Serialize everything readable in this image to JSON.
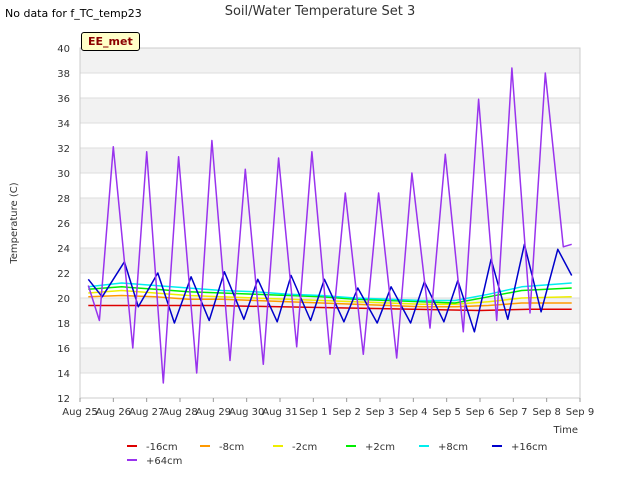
{
  "no_data_note": "No data for f_TC_temp23",
  "badge": "EE_met",
  "chart_data": {
    "type": "line",
    "title": "Soil/Water Temperature Set 3",
    "xlabel": "Time",
    "ylabel": "Temperature (C)",
    "xlim": [
      "2023-08-25",
      "2023-09-09"
    ],
    "ylim": [
      12,
      40
    ],
    "yticks": [
      12,
      14,
      16,
      18,
      20,
      22,
      24,
      26,
      28,
      30,
      32,
      34,
      36,
      38,
      40
    ],
    "xtick_labels": [
      "Aug 25",
      "Aug 26",
      "Aug 27",
      "Aug 28",
      "Aug 29",
      "Aug 30",
      "Aug 31",
      "Sep 1",
      "Sep 2",
      "Sep 3",
      "Sep 4",
      "Sep 5",
      "Sep 6",
      "Sep 7",
      "Sep 8",
      "Sep 9"
    ],
    "grid": true,
    "legend_position": "bottom",
    "series": [
      {
        "name": "-16cm",
        "color": "#dd0000",
        "x": [
          "2023-08-25 06:00",
          "2023-08-27 00:00",
          "2023-08-29 00:00",
          "2023-08-31 00:00",
          "2023-09-02 00:00",
          "2023-09-04 00:00",
          "2023-09-06 00:00",
          "2023-09-07 12:00",
          "2023-09-08 18:00"
        ],
        "y": [
          19.4,
          19.4,
          19.4,
          19.3,
          19.2,
          19.1,
          19.0,
          19.1,
          19.1
        ]
      },
      {
        "name": "-8cm",
        "color": "#ff9900",
        "x": [
          "2023-08-25 06:00",
          "2023-08-26 06:00",
          "2023-08-27 06:00",
          "2023-08-28 06:00",
          "2023-08-29 06:00",
          "2023-08-30 06:00",
          "2023-08-31 06:00",
          "2023-09-01 06:00",
          "2023-09-02 06:00",
          "2023-09-03 06:00",
          "2023-09-04 06:00",
          "2023-09-05 06:00",
          "2023-09-06 06:00",
          "2023-09-07 06:00",
          "2023-09-08 18:00"
        ],
        "y": [
          20.1,
          20.2,
          20.1,
          19.9,
          19.9,
          19.8,
          19.7,
          19.6,
          19.5,
          19.4,
          19.3,
          19.3,
          19.4,
          19.6,
          19.6
        ]
      },
      {
        "name": "-2cm",
        "color": "#eeee00",
        "x": [
          "2023-08-25 06:00",
          "2023-08-26 06:00",
          "2023-08-27 06:00",
          "2023-08-28 06:00",
          "2023-08-29 06:00",
          "2023-08-30 06:00",
          "2023-08-31 06:00",
          "2023-09-01 06:00",
          "2023-09-02 06:00",
          "2023-09-03 06:00",
          "2023-09-04 06:00",
          "2023-09-05 06:00",
          "2023-09-06 06:00",
          "2023-09-07 06:00",
          "2023-09-08 18:00"
        ],
        "y": [
          20.4,
          20.6,
          20.4,
          20.2,
          20.1,
          20.0,
          19.9,
          19.8,
          19.7,
          19.6,
          19.5,
          19.5,
          19.7,
          20.0,
          20.1
        ]
      },
      {
        "name": "+2cm",
        "color": "#00ee00",
        "x": [
          "2023-08-25 06:00",
          "2023-08-26 06:00",
          "2023-08-27 06:00",
          "2023-08-28 06:00",
          "2023-08-29 06:00",
          "2023-08-30 06:00",
          "2023-08-31 06:00",
          "2023-09-01 06:00",
          "2023-09-02 06:00",
          "2023-09-03 06:00",
          "2023-09-04 06:00",
          "2023-09-05 06:00",
          "2023-09-06 06:00",
          "2023-09-07 06:00",
          "2023-09-08 18:00"
        ],
        "y": [
          20.7,
          20.9,
          20.7,
          20.5,
          20.4,
          20.3,
          20.2,
          20.1,
          19.9,
          19.8,
          19.7,
          19.6,
          20.1,
          20.6,
          20.8
        ]
      },
      {
        "name": "+8cm",
        "color": "#00eeee",
        "x": [
          "2023-08-25 06:00",
          "2023-08-26 06:00",
          "2023-08-27 06:00",
          "2023-08-28 06:00",
          "2023-08-29 06:00",
          "2023-08-30 06:00",
          "2023-08-31 06:00",
          "2023-09-01 06:00",
          "2023-09-02 06:00",
          "2023-09-03 06:00",
          "2023-09-04 06:00",
          "2023-09-05 06:00",
          "2023-09-06 06:00",
          "2023-09-07 06:00",
          "2023-09-08 18:00"
        ],
        "y": [
          20.9,
          21.2,
          21.0,
          20.8,
          20.6,
          20.5,
          20.3,
          20.2,
          20.0,
          19.9,
          19.8,
          19.8,
          20.3,
          20.9,
          21.2
        ]
      },
      {
        "name": "+16cm",
        "color": "#0000cc",
        "x": [
          "2023-08-25 06:00",
          "2023-08-25 16:00",
          "2023-08-26 08:00",
          "2023-08-26 18:00",
          "2023-08-27 08:00",
          "2023-08-27 20:00",
          "2023-08-28 08:00",
          "2023-08-28 21:00",
          "2023-08-29 08:00",
          "2023-08-29 22:00",
          "2023-08-30 08:00",
          "2023-08-30 22:00",
          "2023-08-31 08:00",
          "2023-08-31 22:00",
          "2023-09-01 08:00",
          "2023-09-01 22:00",
          "2023-09-02 08:00",
          "2023-09-02 22:00",
          "2023-09-03 08:00",
          "2023-09-03 22:00",
          "2023-09-04 08:00",
          "2023-09-04 22:00",
          "2023-09-05 08:00",
          "2023-09-05 20:00",
          "2023-09-06 08:00",
          "2023-09-06 20:00",
          "2023-09-07 08:00",
          "2023-09-07 20:00",
          "2023-09-08 08:00",
          "2023-09-08 18:00"
        ],
        "y": [
          21.5,
          20.1,
          22.9,
          19.3,
          22.0,
          18.0,
          21.7,
          18.2,
          22.1,
          18.3,
          21.5,
          18.1,
          21.8,
          18.2,
          21.5,
          18.1,
          20.8,
          18.0,
          20.9,
          18.0,
          21.3,
          18.1,
          21.4,
          17.3,
          23.1,
          18.3,
          24.3,
          18.9,
          23.9,
          21.8
        ]
      },
      {
        "name": "+64cm",
        "color": "#9933ee",
        "x": [
          "2023-08-25 06:00",
          "2023-08-25 14:00",
          "2023-08-26 00:00",
          "2023-08-26 14:00",
          "2023-08-27 00:00",
          "2023-08-27 12:00",
          "2023-08-27 23:00",
          "2023-08-28 12:00",
          "2023-08-28 23:00",
          "2023-08-29 12:00",
          "2023-08-29 23:00",
          "2023-08-30 12:00",
          "2023-08-30 23:00",
          "2023-08-31 12:00",
          "2023-08-31 23:00",
          "2023-09-01 12:00",
          "2023-09-01 23:00",
          "2023-09-02 12:00",
          "2023-09-02 23:00",
          "2023-09-03 12:00",
          "2023-09-03 23:00",
          "2023-09-04 12:00",
          "2023-09-04 23:00",
          "2023-09-05 12:00",
          "2023-09-05 23:00",
          "2023-09-06 12:00",
          "2023-09-06 23:00",
          "2023-09-07 12:00",
          "2023-09-07 23:00",
          "2023-09-08 12:00",
          "2023-09-08 18:00"
        ],
        "y": [
          21.0,
          18.2,
          32.1,
          16.0,
          31.7,
          13.2,
          31.3,
          14.0,
          32.6,
          15.0,
          30.3,
          14.7,
          31.2,
          16.1,
          31.7,
          15.5,
          28.4,
          15.5,
          28.4,
          15.2,
          30.0,
          17.6,
          31.5,
          17.3,
          35.9,
          18.2,
          38.4,
          18.8,
          38.0,
          24.1,
          24.3
        ]
      }
    ]
  }
}
